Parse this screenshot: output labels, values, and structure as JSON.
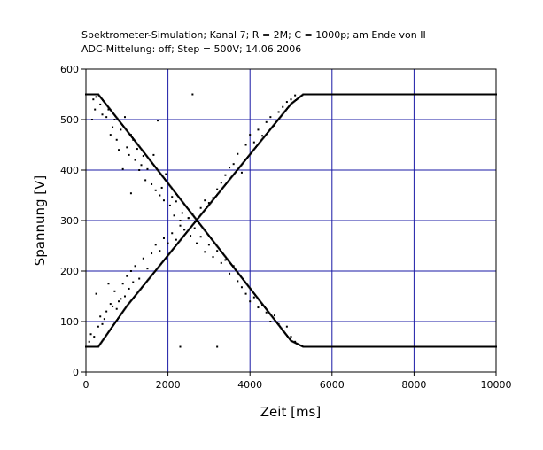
{
  "chart_data": {
    "type": "scatter",
    "title_lines": [
      "Spektrometer-Simulation; Kanal 7; R = 2M; C = 1000p; am Ende von II",
      "ADC-Mittelung: off; Step = 500V; 14.06.2006"
    ],
    "xlabel": "Zeit [ms]",
    "ylabel": "Spannung [V]",
    "xlim": [
      0,
      10000
    ],
    "ylim": [
      0,
      600
    ],
    "x_ticks": [
      0,
      2000,
      4000,
      6000,
      8000,
      10000
    ],
    "y_ticks": [
      0,
      100,
      200,
      300,
      400,
      500,
      600
    ],
    "x_tick_labels": [
      "0",
      "2000",
      "4000",
      "6000",
      "8000",
      "10000"
    ],
    "y_tick_labels": [
      "0",
      "100",
      "200",
      "300",
      "400",
      "500",
      "600"
    ],
    "grid": true,
    "grid_color": "#1a1aa6",
    "marker_color": "#000000",
    "series": [
      {
        "points": [
          [
            0,
            550
          ],
          [
            300,
            550
          ],
          [
            1000,
            478
          ],
          [
            2000,
            374
          ],
          [
            3000,
            270
          ],
          [
            4000,
            166
          ],
          [
            5000,
            62
          ],
          [
            5300,
            50
          ],
          [
            6000,
            50
          ],
          [
            8000,
            50
          ],
          [
            10000,
            50
          ]
        ]
      },
      {
        "points": [
          [
            0,
            50
          ],
          [
            300,
            50
          ],
          [
            1000,
            131
          ],
          [
            2000,
            231
          ],
          [
            3000,
            331
          ],
          [
            4000,
            431
          ],
          [
            5000,
            531
          ],
          [
            5300,
            550
          ],
          [
            6000,
            550
          ],
          [
            8000,
            550
          ],
          [
            10000,
            550
          ]
        ]
      },
      {
        "points": [
          [
            150,
            500
          ],
          [
            180,
            540
          ],
          [
            220,
            520
          ],
          [
            250,
            545
          ],
          [
            350,
            530
          ],
          [
            400,
            510
          ],
          [
            450,
            535
          ],
          [
            500,
            505
          ],
          [
            550,
            520
          ],
          [
            600,
            470
          ],
          [
            650,
            485
          ],
          [
            700,
            500
          ],
          [
            750,
            460
          ],
          [
            800,
            440
          ],
          [
            850,
            480
          ],
          [
            900,
            402
          ],
          [
            950,
            505
          ],
          [
            1000,
            445
          ],
          [
            1050,
            430
          ],
          [
            1100,
            470
          ],
          [
            1150,
            460
          ],
          [
            1200,
            420
          ],
          [
            1250,
            442
          ],
          [
            1300,
            400
          ],
          [
            1350,
            410
          ],
          [
            1400,
            428
          ],
          [
            1450,
            380
          ],
          [
            1500,
            402
          ],
          [
            1600,
            372
          ],
          [
            1650,
            430
          ],
          [
            1700,
            360
          ],
          [
            1750,
            498
          ],
          [
            1800,
            350
          ],
          [
            1850,
            365
          ],
          [
            1900,
            340
          ],
          [
            1950,
            392
          ],
          [
            2050,
            330
          ],
          [
            2100,
            347
          ],
          [
            2150,
            310
          ],
          [
            2200,
            338
          ],
          [
            2300,
            300
          ],
          [
            2350,
            315
          ],
          [
            2400,
            282
          ],
          [
            2500,
            305
          ],
          [
            2550,
            270
          ],
          [
            2650,
            285
          ],
          [
            2700,
            255
          ],
          [
            2800,
            268
          ],
          [
            2900,
            238
          ],
          [
            3000,
            252
          ],
          [
            3100,
            228
          ],
          [
            3200,
            240
          ],
          [
            3300,
            216
          ],
          [
            3400,
            222
          ],
          [
            3500,
            195
          ],
          [
            3600,
            210
          ],
          [
            3700,
            180
          ],
          [
            3800,
            168
          ],
          [
            3900,
            155
          ],
          [
            4000,
            140
          ],
          [
            4100,
            148
          ],
          [
            4200,
            128
          ],
          [
            4300,
            132
          ],
          [
            4400,
            118
          ],
          [
            4500,
            100
          ],
          [
            4600,
            112
          ],
          [
            4700,
            95
          ],
          [
            4800,
            82
          ],
          [
            4900,
            90
          ],
          [
            5000,
            70
          ],
          [
            5100,
            60
          ],
          [
            2300,
            50
          ],
          [
            3200,
            50
          ],
          [
            2600,
            550
          ],
          [
            1100,
            354
          ]
        ]
      },
      {
        "points": [
          [
            80,
            60
          ],
          [
            120,
            75
          ],
          [
            200,
            70
          ],
          [
            250,
            155
          ],
          [
            300,
            90
          ],
          [
            350,
            110
          ],
          [
            400,
            95
          ],
          [
            450,
            105
          ],
          [
            500,
            120
          ],
          [
            550,
            175
          ],
          [
            600,
            135
          ],
          [
            650,
            130
          ],
          [
            700,
            160
          ],
          [
            750,
            125
          ],
          [
            800,
            140
          ],
          [
            850,
            145
          ],
          [
            900,
            175
          ],
          [
            950,
            150
          ],
          [
            1000,
            190
          ],
          [
            1050,
            165
          ],
          [
            1100,
            200
          ],
          [
            1150,
            178
          ],
          [
            1200,
            210
          ],
          [
            1300,
            185
          ],
          [
            1400,
            225
          ],
          [
            1500,
            205
          ],
          [
            1600,
            235
          ],
          [
            1700,
            252
          ],
          [
            1800,
            240
          ],
          [
            1900,
            265
          ],
          [
            2000,
            255
          ],
          [
            2100,
            275
          ],
          [
            2200,
            262
          ],
          [
            2300,
            290
          ],
          [
            2400,
            282
          ],
          [
            2500,
            305
          ],
          [
            2600,
            312
          ],
          [
            2700,
            298
          ],
          [
            2800,
            325
          ],
          [
            2900,
            340
          ],
          [
            3000,
            335
          ],
          [
            3100,
            345
          ],
          [
            3200,
            362
          ],
          [
            3300,
            375
          ],
          [
            3400,
            390
          ],
          [
            3500,
            405
          ],
          [
            3600,
            412
          ],
          [
            3700,
            432
          ],
          [
            3800,
            395
          ],
          [
            3900,
            450
          ],
          [
            4000,
            470
          ],
          [
            4100,
            455
          ],
          [
            4200,
            480
          ],
          [
            4300,
            468
          ],
          [
            4400,
            495
          ],
          [
            4500,
            505
          ],
          [
            4600,
            488
          ],
          [
            4700,
            515
          ],
          [
            4800,
            525
          ],
          [
            4900,
            535
          ],
          [
            5000,
            540
          ],
          [
            5100,
            548
          ]
        ]
      }
    ]
  }
}
